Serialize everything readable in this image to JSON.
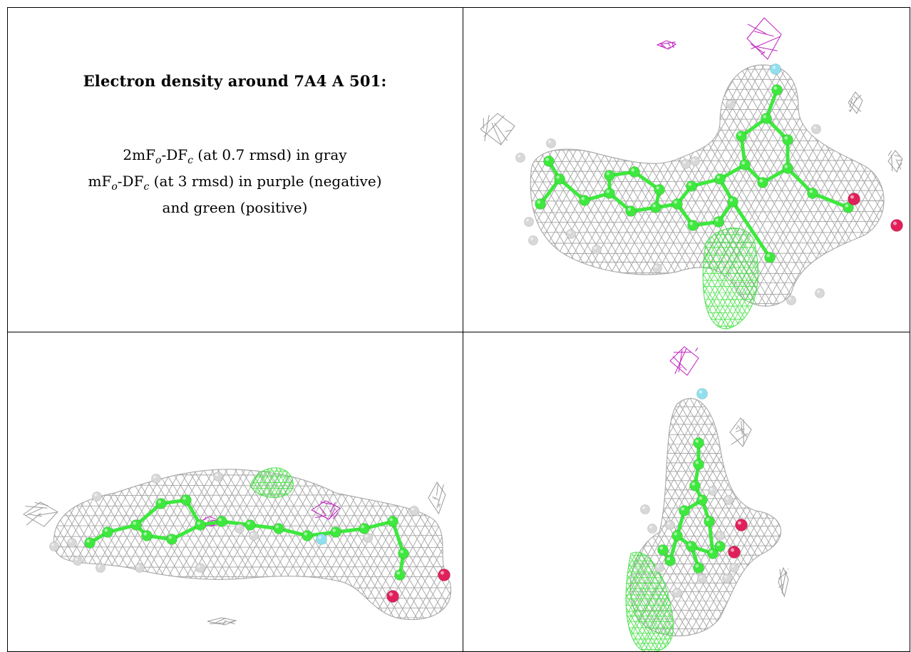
{
  "caption": {
    "title": "Electron density around 7A4 A 501:",
    "line1_a": "2mF",
    "line1_sub1": "o",
    "line1_b": "-DF",
    "line1_sub2": "c",
    "line1_c": " (at 0.7 rmsd) in gray",
    "line2_a": "mF",
    "line2_sub1": "o",
    "line2_b": "-DF",
    "line2_sub2": "c",
    "line2_c": " (at 3 rmsd) in purple (negative)",
    "line3": "and green (positive)"
  },
  "colors": {
    "mesh_gray": "#9a9a9a",
    "carbon_green": "#3ee83e",
    "hydrogen_white": "#d8d8d8",
    "oxygen_red": "#e0205a",
    "fluorine_cyan": "#8fe0ef",
    "negative_purple": "#c020c0",
    "positive_green": "#40e040"
  }
}
